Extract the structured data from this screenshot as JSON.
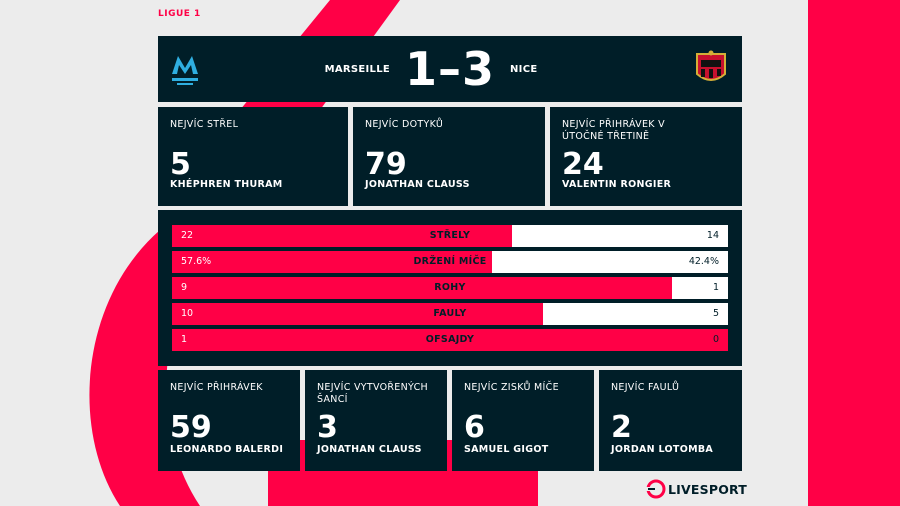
{
  "colors": {
    "accent": "#ff0046",
    "panel": "#001e28",
    "background": "#ececec"
  },
  "league": "LIGUE 1",
  "match": {
    "home_team": "MARSEILLE",
    "away_team": "NICE",
    "score": "1–3",
    "home_crest_icon": "olympique-marseille-crest-icon",
    "away_crest_icon": "ogc-nice-crest-icon"
  },
  "top_stats": [
    {
      "label": "NEJVÍC STŘEL",
      "value": "5",
      "player": "KHÉPHREN THURAM"
    },
    {
      "label": "NEJVÍC DOTYKŮ",
      "value": "79",
      "player": "JONATHAN CLAUSS"
    },
    {
      "label": "NEJVÍC PŘIHRÁVEK V ÚTOČNÉ TŘETINĚ",
      "value": "24",
      "player": "VALENTIN RONGIER"
    }
  ],
  "comparison": [
    {
      "name": "STŘELY",
      "home": "22",
      "away": "14",
      "home_share": 0.611
    },
    {
      "name": "DRŽENÍ MÍČE",
      "home": "57.6%",
      "away": "42.4%",
      "home_share": 0.576
    },
    {
      "name": "ROHY",
      "home": "9",
      "away": "1",
      "home_share": 0.9
    },
    {
      "name": "FAULY",
      "home": "10",
      "away": "5",
      "home_share": 0.667
    },
    {
      "name": "OFSAJDY",
      "home": "1",
      "away": "0",
      "home_share": 1.0
    }
  ],
  "bottom_stats": [
    {
      "label": "NEJVÍC PŘIHRÁVEK",
      "value": "59",
      "player": "LEONARDO BALERDI"
    },
    {
      "label": "NEJVÍC VYTVOŘENÝCH ŠANCÍ",
      "value": "3",
      "player": "JONATHAN CLAUSS"
    },
    {
      "label": "NEJVÍC ZISKŮ MÍČE",
      "value": "6",
      "player": "SAMUEL GIGOT"
    },
    {
      "label": "NEJVÍC FAULŮ",
      "value": "2",
      "player": "JORDAN LOTOMBA"
    }
  ],
  "brand": {
    "name": "LIVESPORT",
    "icon": "livesport-logo-icon"
  }
}
